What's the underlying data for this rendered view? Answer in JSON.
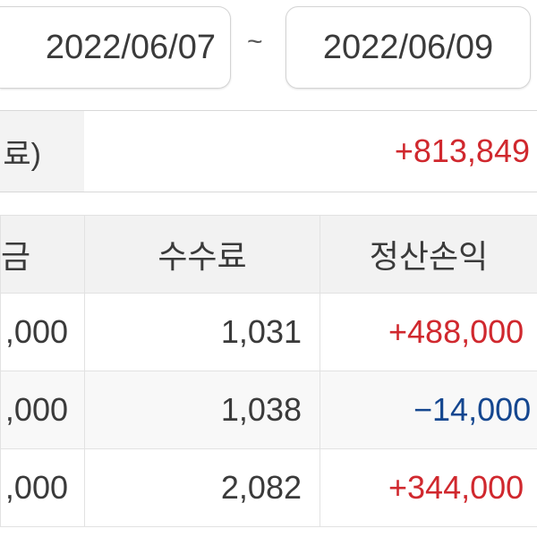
{
  "date_range": {
    "start": "2022/06/07",
    "separator": "~",
    "end": "2022/06/09"
  },
  "summary": {
    "label": "료)",
    "value": "+813,849",
    "value_color": "#d0282e"
  },
  "table": {
    "headers": [
      "금",
      "수수료",
      "정산손익"
    ],
    "rows": [
      {
        "amount": ",000",
        "fee": "1,031",
        "pnl": "+488,000",
        "sign": "pos"
      },
      {
        "amount": ",000",
        "fee": "1,038",
        "pnl": "−14,000",
        "sign": "neg"
      },
      {
        "amount": ",000",
        "fee": "2,082",
        "pnl": "+344,000",
        "sign": "pos"
      }
    ]
  },
  "colors": {
    "positive": "#d0282e",
    "negative": "#14468f"
  }
}
